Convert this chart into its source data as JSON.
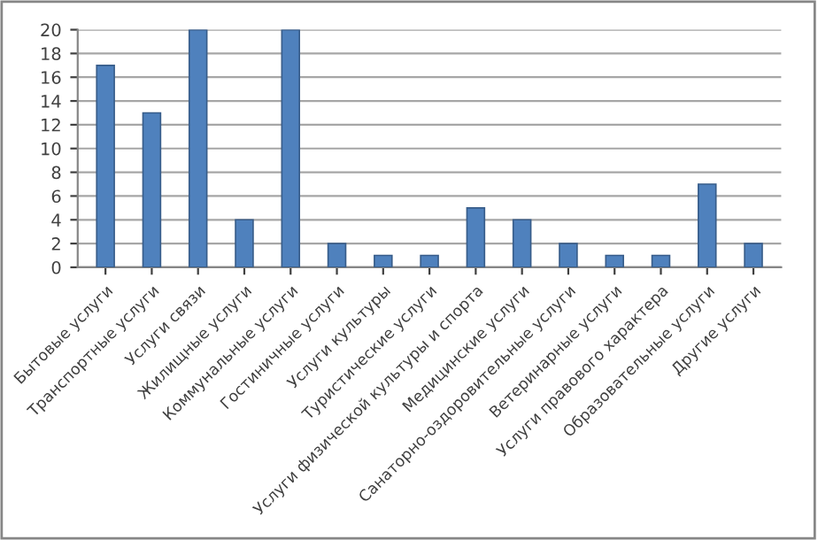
{
  "chart_data": {
    "type": "bar",
    "categories": [
      "Бытовые услуги",
      "Транспортные услуги",
      "Услуги связи",
      "Жилищные услуги",
      "Коммунальные услуги",
      "Гостиничные услуги",
      "Услуги культуры",
      "Туристические услуги",
      "Услуги физической культуры и спорта",
      "Медицинские услуги",
      "Санаторно-оздоровительные услуги",
      "Ветеринарные услуги",
      "Услуги правового характера",
      "Образовательные услуги",
      "Другие услуги"
    ],
    "values": [
      17,
      13,
      20,
      4,
      20,
      2,
      1,
      1,
      5,
      4,
      2,
      1,
      1,
      7,
      2
    ],
    "color": "#4f81bd",
    "ylim": [
      0,
      20
    ],
    "yticks": [
      0,
      2,
      4,
      6,
      8,
      10,
      12,
      14,
      16,
      18,
      20
    ],
    "grid": "y"
  }
}
